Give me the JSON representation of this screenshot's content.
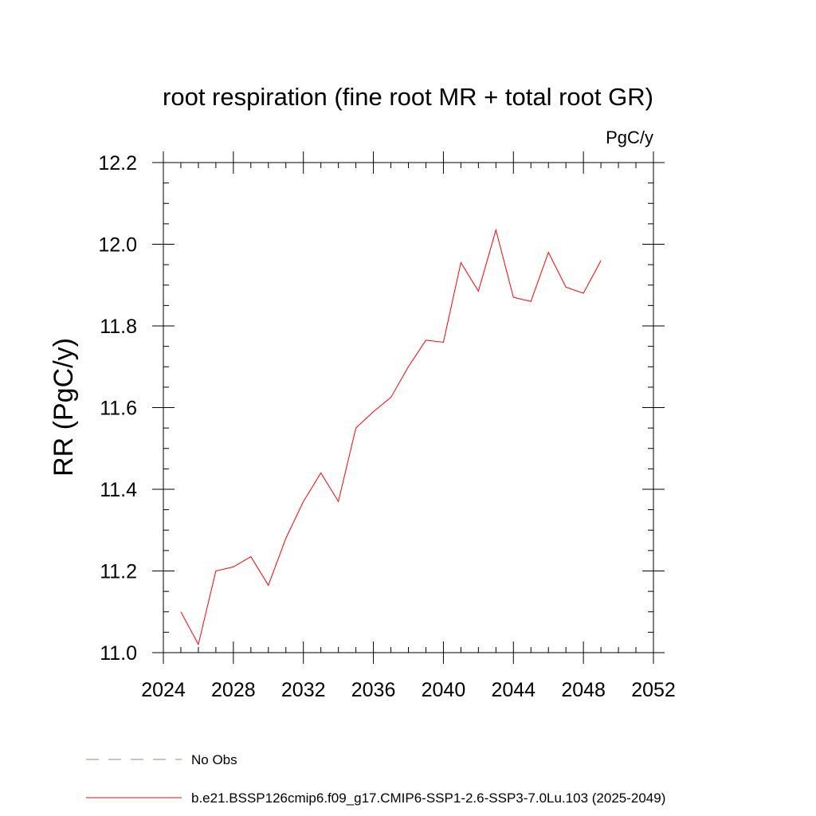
{
  "chart_data": {
    "type": "line",
    "title": "root respiration (fine root MR + total root GR)",
    "units_label": "PgC/y",
    "ylabel": "RR  (PgC/y)",
    "xlabel": "",
    "xlim": [
      2024,
      2052
    ],
    "ylim": [
      11.0,
      12.2
    ],
    "x_ticks": [
      2024,
      2028,
      2032,
      2036,
      2040,
      2044,
      2048,
      2052
    ],
    "x_tick_labels": [
      "2024",
      "2028",
      "2032",
      "2036",
      "2040",
      "2044",
      "2048",
      "2052"
    ],
    "y_ticks": [
      11.0,
      11.2,
      11.4,
      11.6,
      11.8,
      12.0,
      12.2
    ],
    "y_tick_labels": [
      "11.0",
      "11.2",
      "11.4",
      "11.6",
      "11.8",
      "12.0",
      "12.2"
    ],
    "x_minor_step": 1,
    "y_minor_step": 0.05,
    "series": [
      {
        "name": "b.e21.BSSP126cmip6.f09_g17.CMIP6-SSP1-2.6-SSP3-7.0Lu.103 (2025-2049)",
        "color": "#ff0000",
        "style": "solid",
        "x": [
          2025,
          2026,
          2027,
          2028,
          2029,
          2030,
          2031,
          2032,
          2033,
          2034,
          2035,
          2036,
          2037,
          2038,
          2039,
          2040,
          2041,
          2042,
          2043,
          2044,
          2045,
          2046,
          2047,
          2048,
          2049
        ],
        "values": [
          11.1,
          11.02,
          11.2,
          11.21,
          11.235,
          11.165,
          11.28,
          11.37,
          11.44,
          11.37,
          11.55,
          11.59,
          11.625,
          11.7,
          11.765,
          11.76,
          11.955,
          11.885,
          12.035,
          11.87,
          11.86,
          11.98,
          11.895,
          11.88,
          11.96
        ]
      }
    ],
    "legend": {
      "position": "bottom-left",
      "entries": [
        {
          "label": "No Obs",
          "color": "#8b7fc9",
          "style": "dashed"
        },
        {
          "label": "b.e21.BSSP126cmip6.f09_g17.CMIP6-SSP1-2.6-SSP3-7.0Lu.103 (2025-2049)",
          "color": "#ff0000",
          "style": "solid"
        }
      ]
    }
  }
}
